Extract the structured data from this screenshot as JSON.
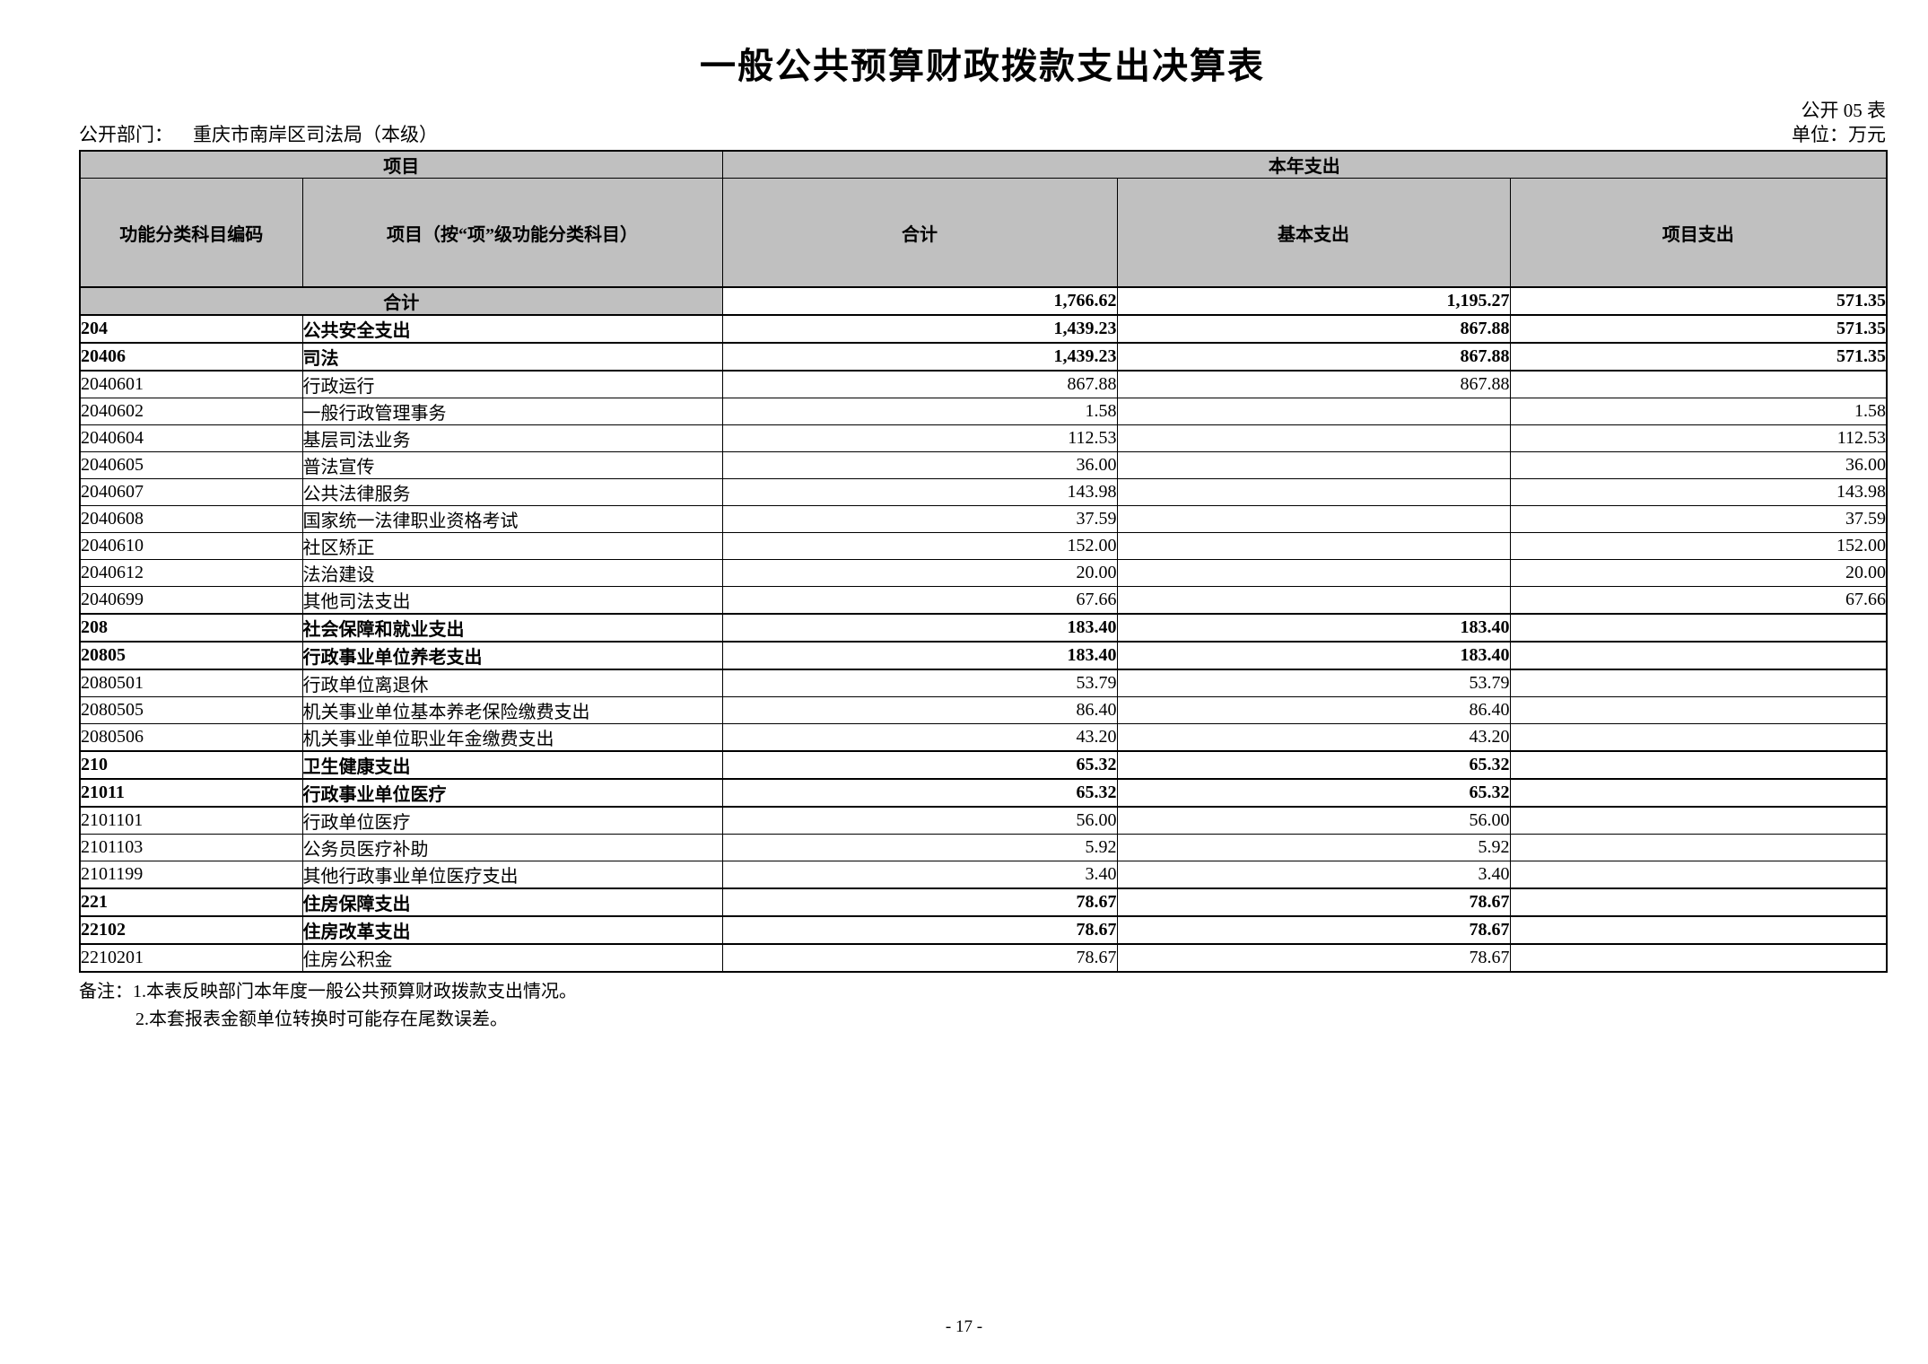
{
  "page": {
    "title": "一般公共预算财政拨款支出决算表",
    "table_code": "公开 05 表",
    "department_label": "公开部门：",
    "department_name": "重庆市南岸区司法局（本级）",
    "unit_label": "单位：万元",
    "page_number": "- 17 -"
  },
  "table": {
    "header": {
      "group_item": "项目",
      "group_year": "本年支出",
      "col_code": "功能分类科目编码",
      "col_item": "项目（按“项”级功能分类科目）",
      "col_total": "合计",
      "col_basic": "基本支出",
      "col_project": "项目支出"
    },
    "total_row": {
      "label": "合计",
      "total": "1,766.62",
      "basic": "1,195.27",
      "project": "571.35"
    },
    "rows": [
      {
        "code": "204",
        "name": "公共安全支出",
        "total": "1,439.23",
        "basic": "867.88",
        "project": "571.35",
        "bold": true
      },
      {
        "code": "20406",
        "name": "司法",
        "total": "1,439.23",
        "basic": "867.88",
        "project": "571.35",
        "bold": true
      },
      {
        "code": "2040601",
        "name": "行政运行",
        "total": "867.88",
        "basic": "867.88",
        "project": "",
        "bold": false
      },
      {
        "code": "2040602",
        "name": "一般行政管理事务",
        "total": "1.58",
        "basic": "",
        "project": "1.58",
        "bold": false
      },
      {
        "code": "2040604",
        "name": "基层司法业务",
        "total": "112.53",
        "basic": "",
        "project": "112.53",
        "bold": false
      },
      {
        "code": "2040605",
        "name": "普法宣传",
        "total": "36.00",
        "basic": "",
        "project": "36.00",
        "bold": false
      },
      {
        "code": "2040607",
        "name": "公共法律服务",
        "total": "143.98",
        "basic": "",
        "project": "143.98",
        "bold": false
      },
      {
        "code": "2040608",
        "name": "国家统一法律职业资格考试",
        "total": "37.59",
        "basic": "",
        "project": "37.59",
        "bold": false
      },
      {
        "code": "2040610",
        "name": "社区矫正",
        "total": "152.00",
        "basic": "",
        "project": "152.00",
        "bold": false
      },
      {
        "code": "2040612",
        "name": "法治建设",
        "total": "20.00",
        "basic": "",
        "project": "20.00",
        "bold": false
      },
      {
        "code": "2040699",
        "name": "其他司法支出",
        "total": "67.66",
        "basic": "",
        "project": "67.66",
        "bold": false
      },
      {
        "code": "208",
        "name": "社会保障和就业支出",
        "total": "183.40",
        "basic": "183.40",
        "project": "",
        "bold": true
      },
      {
        "code": "20805",
        "name": "行政事业单位养老支出",
        "total": "183.40",
        "basic": "183.40",
        "project": "",
        "bold": true
      },
      {
        "code": "2080501",
        "name": "行政单位离退休",
        "total": "53.79",
        "basic": "53.79",
        "project": "",
        "bold": false
      },
      {
        "code": "2080505",
        "name": "机关事业单位基本养老保险缴费支出",
        "total": "86.40",
        "basic": "86.40",
        "project": "",
        "bold": false
      },
      {
        "code": "2080506",
        "name": "机关事业单位职业年金缴费支出",
        "total": "43.20",
        "basic": "43.20",
        "project": "",
        "bold": false
      },
      {
        "code": "210",
        "name": "卫生健康支出",
        "total": "65.32",
        "basic": "65.32",
        "project": "",
        "bold": true
      },
      {
        "code": "21011",
        "name": "行政事业单位医疗",
        "total": "65.32",
        "basic": "65.32",
        "project": "",
        "bold": true
      },
      {
        "code": "2101101",
        "name": "行政单位医疗",
        "total": "56.00",
        "basic": "56.00",
        "project": "",
        "bold": false
      },
      {
        "code": "2101103",
        "name": "公务员医疗补助",
        "total": "5.92",
        "basic": "5.92",
        "project": "",
        "bold": false
      },
      {
        "code": "2101199",
        "name": "其他行政事业单位医疗支出",
        "total": "3.40",
        "basic": "3.40",
        "project": "",
        "bold": false
      },
      {
        "code": "221",
        "name": "住房保障支出",
        "total": "78.67",
        "basic": "78.67",
        "project": "",
        "bold": true
      },
      {
        "code": "22102",
        "name": "住房改革支出",
        "total": "78.67",
        "basic": "78.67",
        "project": "",
        "bold": true
      },
      {
        "code": "2210201",
        "name": "住房公积金",
        "total": "78.67",
        "basic": "78.67",
        "project": "",
        "bold": false
      }
    ]
  },
  "notes": {
    "line1": "备注：1.本表反映部门本年度一般公共预算财政拨款支出情况。",
    "line2": "2.本套报表金额单位转换时可能存在尾数误差。"
  }
}
